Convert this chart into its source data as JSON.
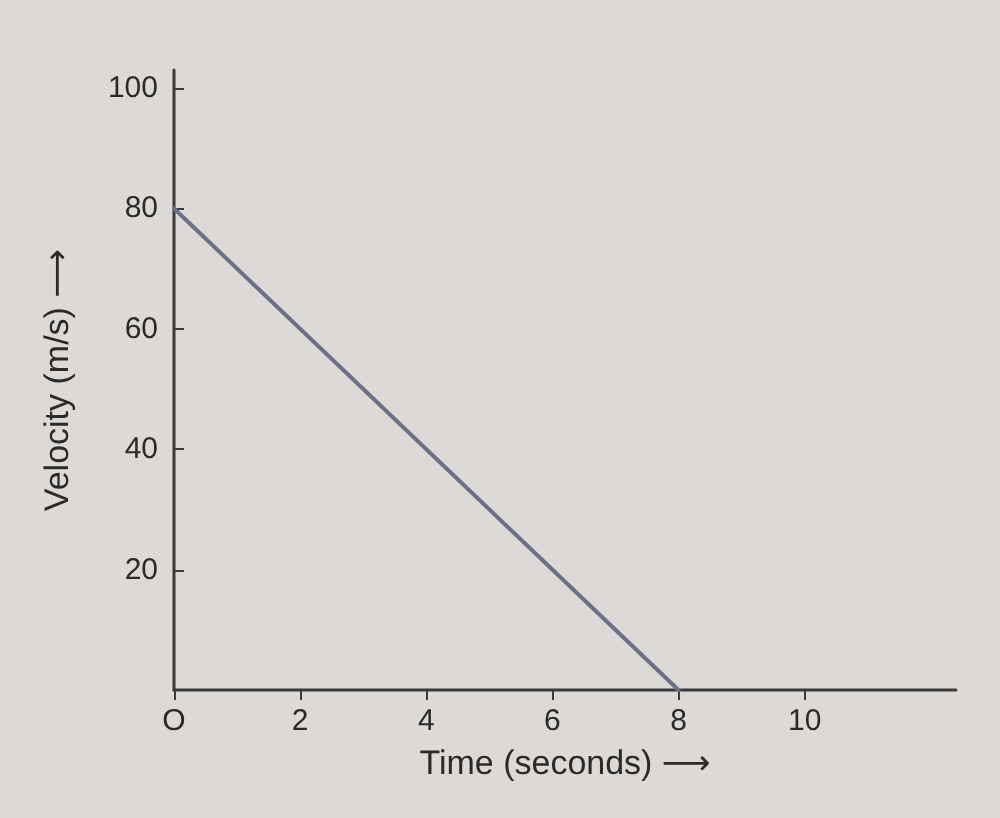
{
  "chart_data": {
    "type": "line",
    "xlabel": "Time (seconds) ⟶",
    "ylabel": "Velocity (m/s) ⟶",
    "x": [
      0,
      8
    ],
    "series": [
      {
        "color": "#6b7088",
        "values": [
          80,
          0
        ]
      }
    ],
    "xlim": [
      0,
      12.4
    ],
    "ylim": [
      0,
      103
    ],
    "xticks": [
      {
        "value": 0,
        "label": "O"
      },
      2,
      4,
      6,
      8,
      10
    ],
    "yticks": [
      20,
      40,
      60,
      80,
      100
    ],
    "grid": false,
    "marker": "none",
    "line_style": "solid"
  }
}
